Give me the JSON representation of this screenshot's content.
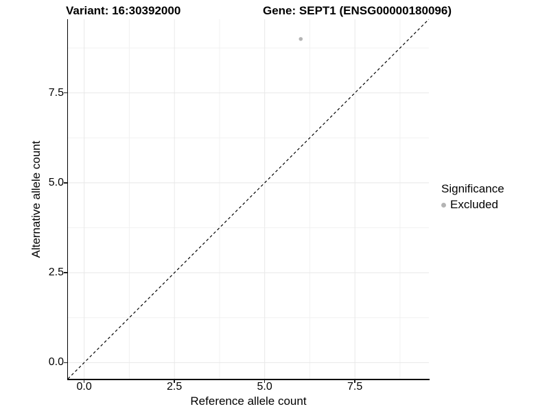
{
  "titles": {
    "variant": "Variant: 16:30392000",
    "gene": "Gene: SEPT1 (ENSG00000180096)"
  },
  "chart_data": {
    "type": "scatter",
    "xlabel": "Reference allele count",
    "ylabel": "Alternative allele count",
    "x_ticks": [
      0.0,
      2.5,
      5.0,
      7.5
    ],
    "x_tick_labels": [
      "0.0",
      "2.5",
      "5.0",
      "7.5"
    ],
    "y_ticks": [
      0.0,
      2.5,
      5.0,
      7.5
    ],
    "y_tick_labels": [
      "0.0",
      "2.5",
      "5.0",
      "7.5"
    ],
    "xlim": [
      -0.45,
      9.55
    ],
    "ylim": [
      -0.45,
      9.55
    ],
    "grid": "major+minor",
    "points": [
      {
        "x": 6,
        "y": 9,
        "significance": "Excluded"
      }
    ],
    "reference_line": {
      "kind": "identity y=x",
      "style": "dashed"
    },
    "colors": {
      "excluded_point": "#b4b4b4",
      "reference_line": "#000000",
      "grid_major": "#e8e8e8",
      "grid_minor": "#f1f1f1",
      "axis_line": "#000000",
      "text": "#000000"
    },
    "legend_position": "right"
  },
  "legend": {
    "title": "Significance",
    "items": [
      {
        "label": "Excluded",
        "color": "#b4b4b4"
      }
    ]
  }
}
